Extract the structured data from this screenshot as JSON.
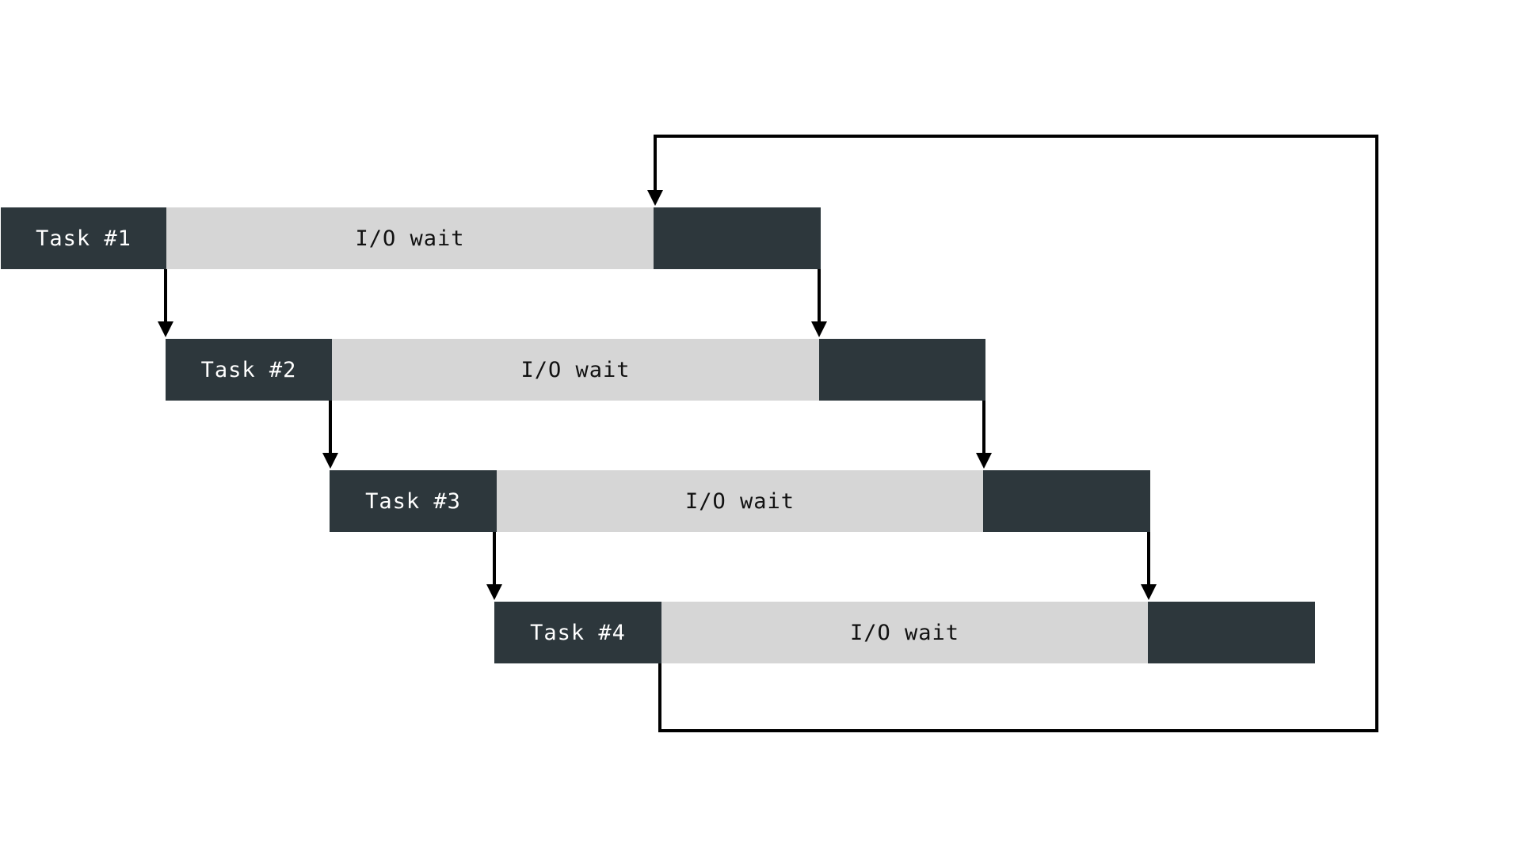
{
  "colors": {
    "task": "#2d373c",
    "wait": "#d6d6d6",
    "line": "#000000"
  },
  "tasks": [
    {
      "label": "Task #1",
      "wait_label": "I/O wait"
    },
    {
      "label": "Task #2",
      "wait_label": "I/O wait"
    },
    {
      "label": "Task #3",
      "wait_label": "I/O wait"
    },
    {
      "label": "Task #4",
      "wait_label": "I/O wait"
    }
  ]
}
